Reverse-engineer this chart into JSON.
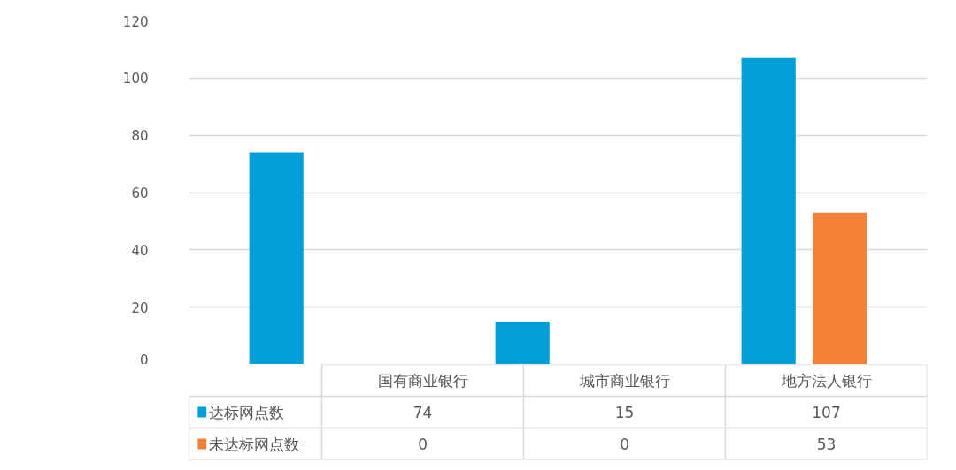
{
  "chart_data": {
    "type": "bar",
    "categories": [
      "国有商业银行",
      "城市商业银行",
      "地方法人银行"
    ],
    "series": [
      {
        "name": "达标网点数",
        "color": "#009fd8",
        "values": [
          74,
          15,
          107
        ]
      },
      {
        "name": "未达标网点数",
        "color": "#f47f36",
        "values": [
          0,
          0,
          53
        ]
      }
    ],
    "ylim": [
      0,
      120
    ],
    "yticks": [
      0,
      20,
      40,
      60,
      80,
      100,
      120
    ],
    "grid": "y",
    "legend": "bottom",
    "data_labels": true
  }
}
